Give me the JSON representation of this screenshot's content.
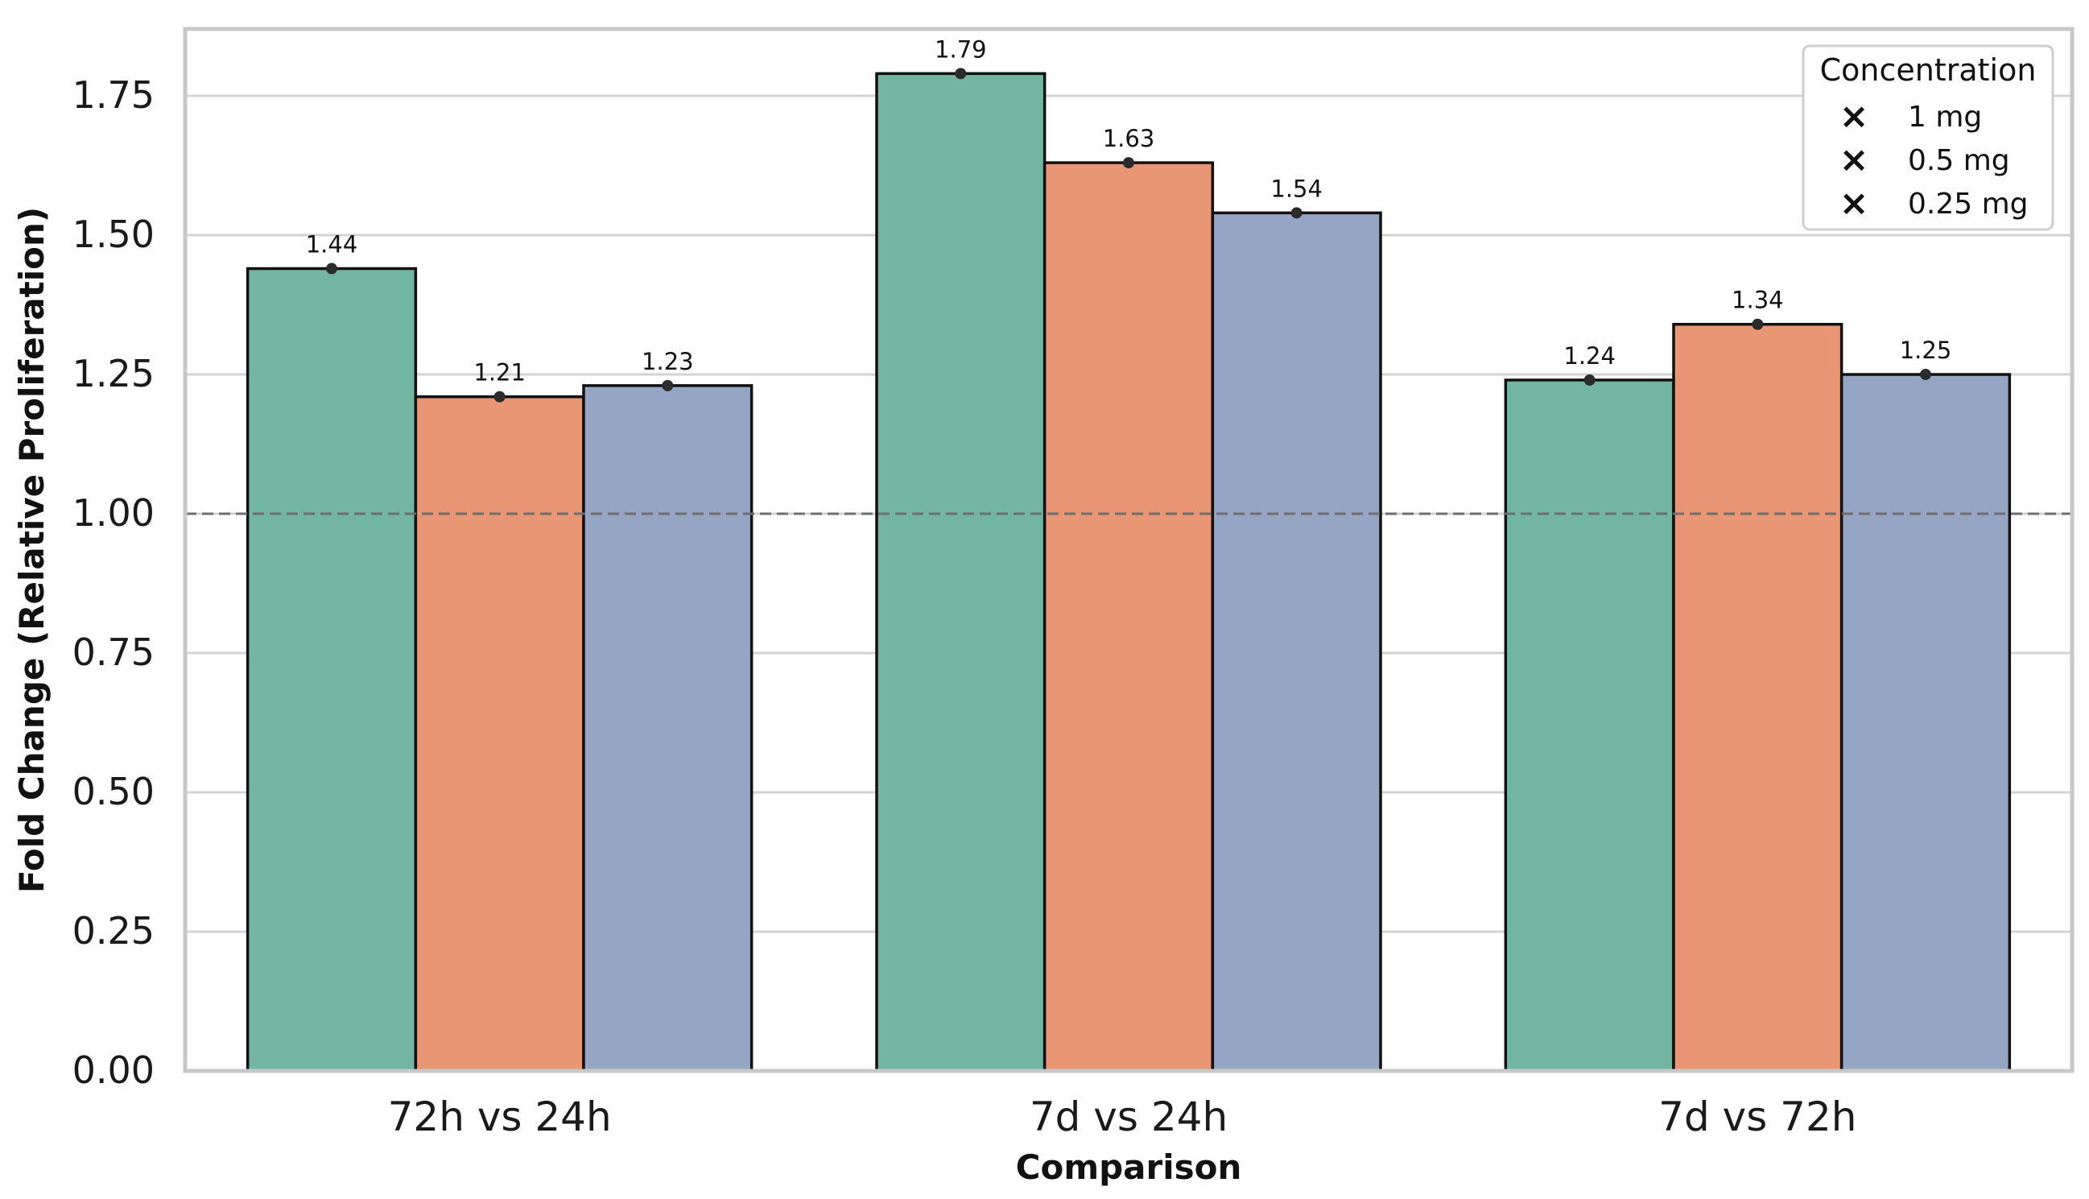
{
  "chart_data": {
    "type": "bar",
    "title": "",
    "xlabel": "Comparison",
    "ylabel": "Fold Change (Relative Proliferation)",
    "ylim": [
      0,
      1.87
    ],
    "yticks": [
      0,
      0.25,
      0.5,
      0.75,
      1.0,
      1.25,
      1.5,
      1.75
    ],
    "ytick_labels": [
      "0.00",
      "0.25",
      "0.50",
      "0.75",
      "1.00",
      "1.25",
      "1.50",
      "1.75"
    ],
    "reference_line": 1.0,
    "grid": "horizontal",
    "categories": [
      "72h vs 24h",
      "7d vs 24h",
      "7d vs 72h"
    ],
    "series": [
      {
        "name": "1 mg",
        "color": "#72b5a0",
        "values": [
          1.44,
          1.79,
          1.24
        ],
        "labels": [
          "1.44",
          "1.79",
          "1.24"
        ]
      },
      {
        "name": "0.5 mg",
        "color": "#e99674",
        "values": [
          1.21,
          1.63,
          1.34
        ],
        "labels": [
          "1.21",
          "1.63",
          "1.34"
        ]
      },
      {
        "name": "0.25 mg",
        "color": "#95a5c4",
        "values": [
          1.23,
          1.54,
          1.25
        ],
        "labels": [
          "1.23",
          "1.54",
          "1.25"
        ]
      }
    ],
    "legend": {
      "title": "Concentration",
      "position": "top-right",
      "marker": "×"
    }
  }
}
